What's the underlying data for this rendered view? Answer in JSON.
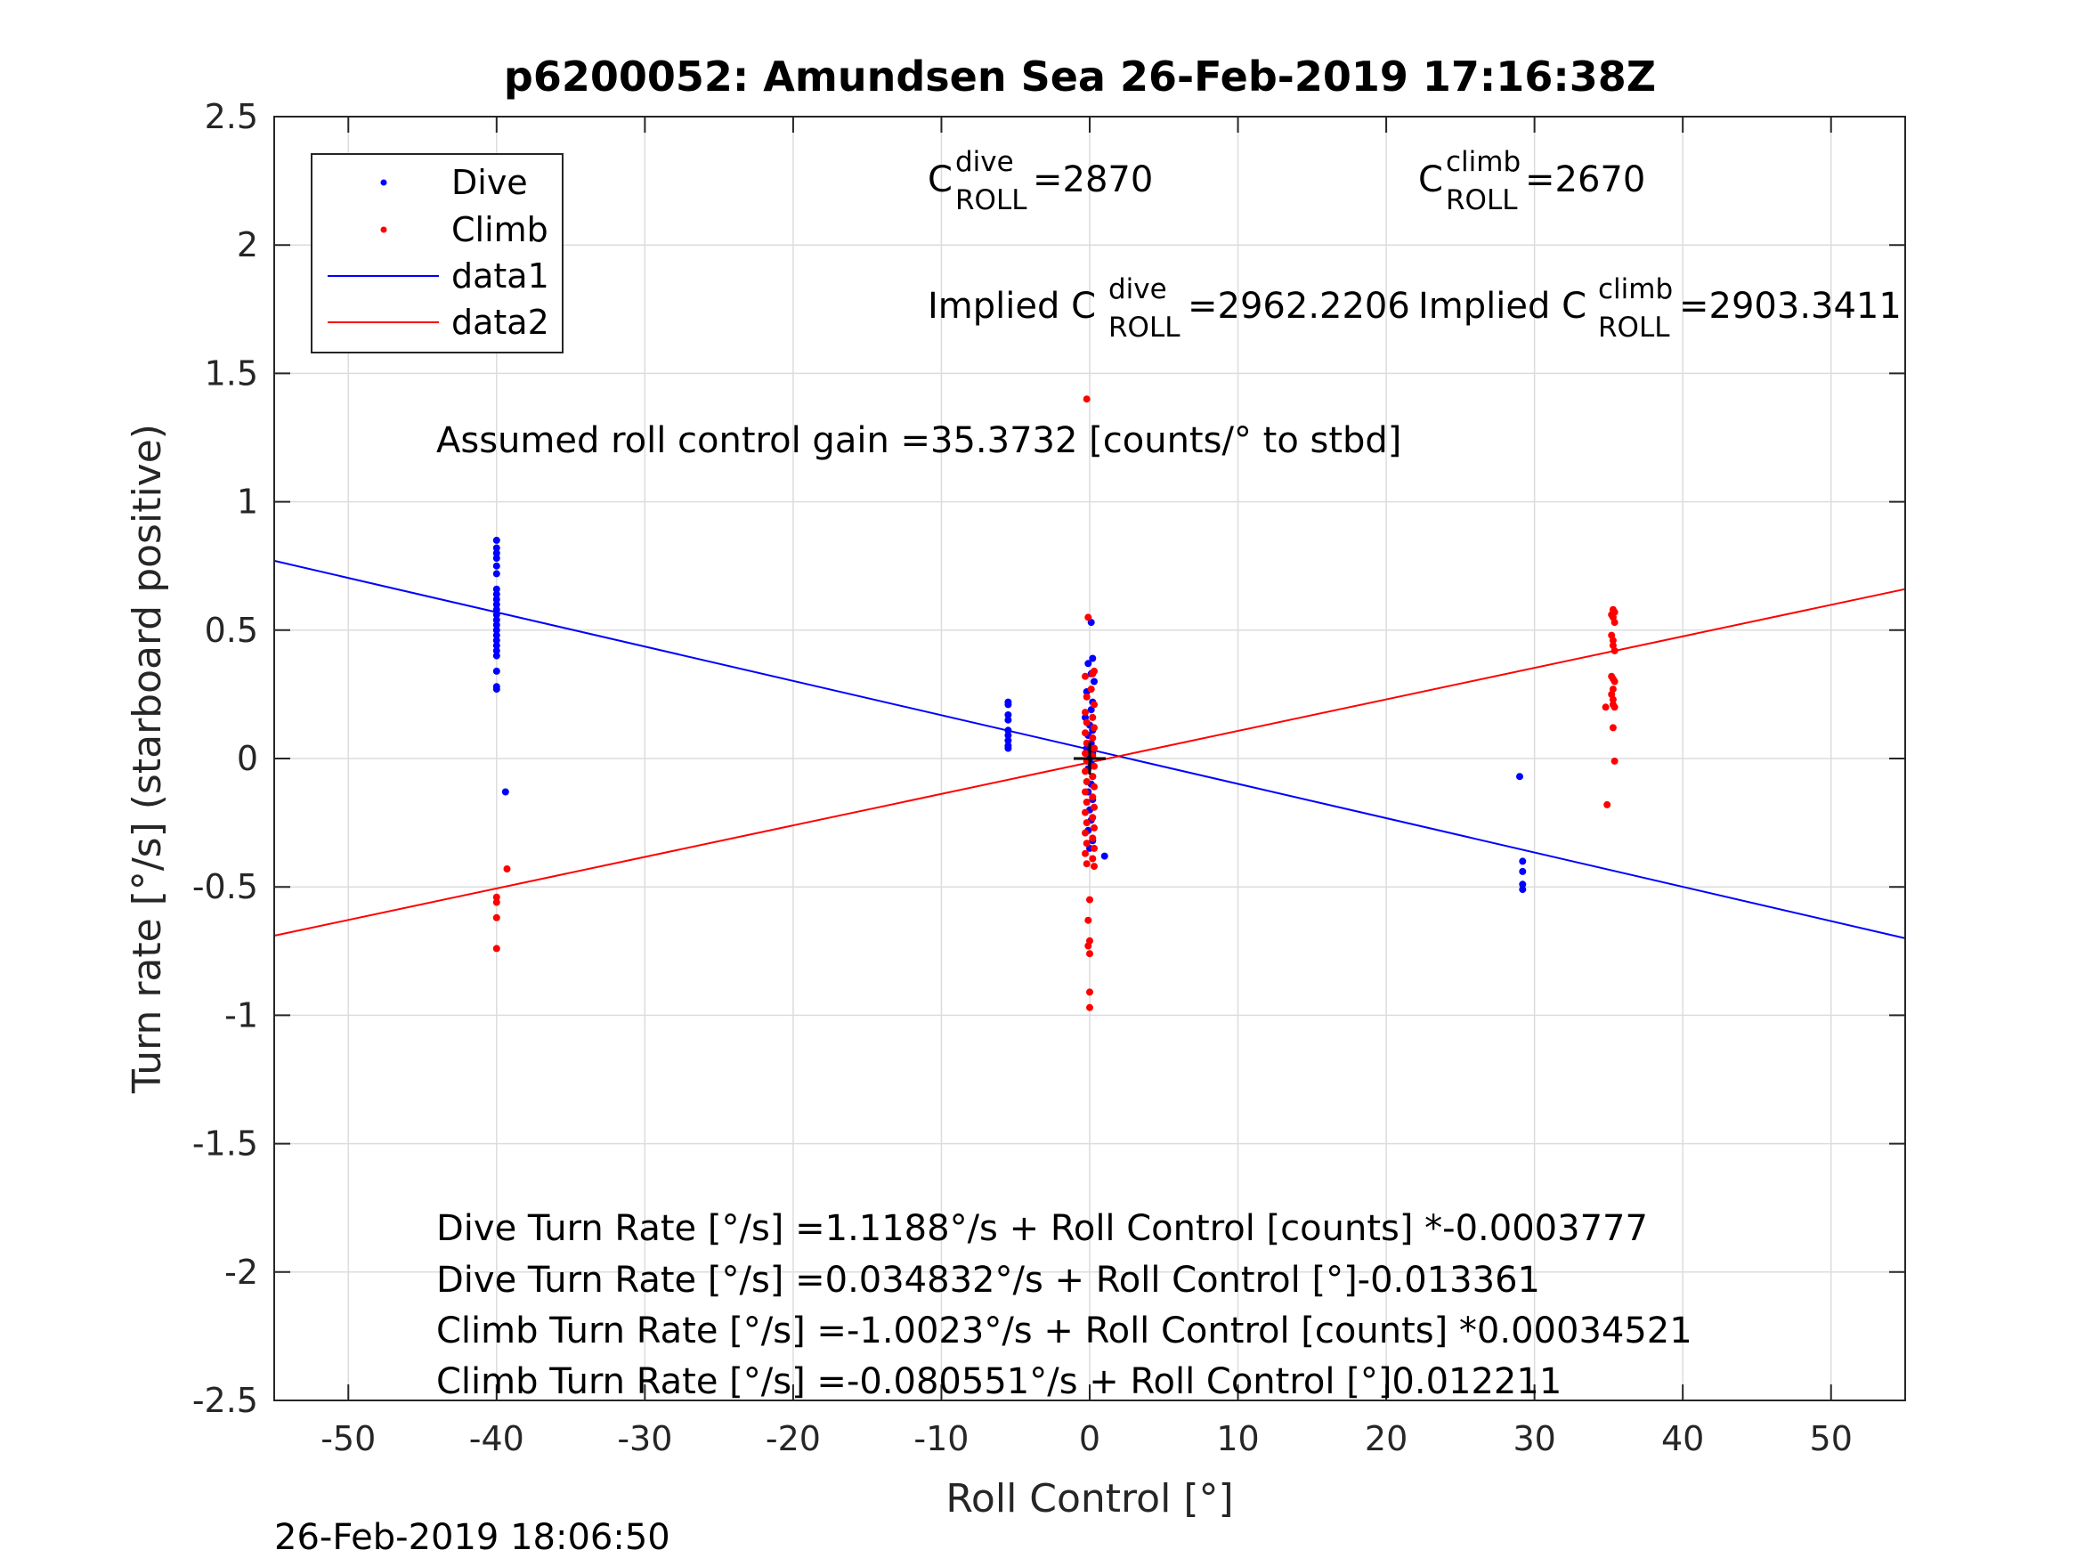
{
  "chart_data": {
    "type": "scatter",
    "title": "p6200052: Amundsen Sea 26-Feb-2019 17:16:38Z",
    "xlabel": "Roll Control [°]",
    "ylabel": "Turn rate [°/s] (starboard positive)",
    "xlim": [
      -55,
      55
    ],
    "ylim": [
      -2.5,
      2.5
    ],
    "grid": true,
    "legend_position": "top-left",
    "x_ticks": [
      "-50",
      "-40",
      "-30",
      "-20",
      "-10",
      "0",
      "10",
      "20",
      "30",
      "40",
      "50"
    ],
    "y_ticks": [
      "2.5",
      "2",
      "1.5",
      "1",
      "0.5",
      "0",
      "-0.5",
      "-1",
      "-1.5",
      "-2",
      "-2.5"
    ],
    "x_tick_values": [
      -50,
      -40,
      -30,
      -20,
      -10,
      0,
      10,
      20,
      30,
      40,
      50
    ],
    "y_tick_values": [
      2.5,
      2,
      1.5,
      1,
      0.5,
      0,
      -0.5,
      -1,
      -1.5,
      -2,
      -2.5
    ],
    "legend": [
      "Dive",
      "Climb",
      "data1",
      "data2"
    ],
    "series": [
      {
        "name": "Dive",
        "color": "#0000ff",
        "marker": "dot",
        "points": [
          [
            -40,
            0.85
          ],
          [
            -40,
            0.82
          ],
          [
            -40,
            0.8
          ],
          [
            -40,
            0.78
          ],
          [
            -40,
            0.75
          ],
          [
            -40,
            0.72
          ],
          [
            -40,
            0.66
          ],
          [
            -40,
            0.64
          ],
          [
            -40,
            0.62
          ],
          [
            -40,
            0.6
          ],
          [
            -40,
            0.58
          ],
          [
            -40,
            0.56
          ],
          [
            -40,
            0.54
          ],
          [
            -40,
            0.52
          ],
          [
            -40,
            0.5
          ],
          [
            -40,
            0.48
          ],
          [
            -40,
            0.46
          ],
          [
            -40,
            0.44
          ],
          [
            -40,
            0.42
          ],
          [
            -40,
            0.4
          ],
          [
            -40,
            0.34
          ],
          [
            -40,
            0.28
          ],
          [
            -40,
            0.27
          ],
          [
            -39.4,
            -0.13
          ],
          [
            -5.5,
            0.22
          ],
          [
            -5.5,
            0.21
          ],
          [
            -5.5,
            0.17
          ],
          [
            -5.5,
            0.15
          ],
          [
            -5.5,
            0.11
          ],
          [
            -5.5,
            0.09
          ],
          [
            -5.5,
            0.07
          ],
          [
            -5.5,
            0.05
          ],
          [
            -5.5,
            0.04
          ],
          [
            0.1,
            0.53
          ],
          [
            0.2,
            0.39
          ],
          [
            -0.1,
            0.37
          ],
          [
            0.1,
            0.33
          ],
          [
            0.3,
            0.3
          ],
          [
            -0.2,
            0.26
          ],
          [
            0.2,
            0.22
          ],
          [
            0.1,
            0.19
          ],
          [
            -0.3,
            0.16
          ],
          [
            0.0,
            0.13
          ],
          [
            0.2,
            0.11
          ],
          [
            -0.1,
            0.09
          ],
          [
            0.1,
            0.06
          ],
          [
            -0.2,
            0.04
          ],
          [
            0.2,
            0.02
          ],
          [
            0.0,
            0.0
          ],
          [
            0.1,
            -0.02
          ],
          [
            -0.1,
            -0.04
          ],
          [
            0.2,
            -0.07
          ],
          [
            0.1,
            -0.1
          ],
          [
            -0.1,
            -0.13
          ],
          [
            0.2,
            -0.16
          ],
          [
            0.0,
            -0.2
          ],
          [
            0.1,
            -0.24
          ],
          [
            -0.1,
            -0.28
          ],
          [
            0.2,
            -0.32
          ],
          [
            0.0,
            -0.35
          ],
          [
            1.0,
            -0.38
          ],
          [
            29,
            -0.07
          ],
          [
            29.2,
            -0.4
          ],
          [
            29.2,
            -0.44
          ],
          [
            29.2,
            -0.49
          ],
          [
            29.2,
            -0.51
          ]
        ]
      },
      {
        "name": "Climb",
        "color": "#ff0000",
        "marker": "dot",
        "points": [
          [
            -40,
            -0.54
          ],
          [
            -40,
            -0.56
          ],
          [
            -40,
            -0.62
          ],
          [
            -40,
            -0.74
          ],
          [
            -39.3,
            -0.43
          ],
          [
            -0.2,
            1.4
          ],
          [
            -0.1,
            0.55
          ],
          [
            0.2,
            0.33
          ],
          [
            0.3,
            0.34
          ],
          [
            -0.3,
            0.32
          ],
          [
            0.1,
            0.27
          ],
          [
            -0.2,
            0.24
          ],
          [
            0.3,
            0.21
          ],
          [
            -0.3,
            0.18
          ],
          [
            0.2,
            0.16
          ],
          [
            -0.2,
            0.14
          ],
          [
            0.3,
            0.12
          ],
          [
            -0.3,
            0.1
          ],
          [
            0.2,
            0.08
          ],
          [
            -0.2,
            0.06
          ],
          [
            0.3,
            0.04
          ],
          [
            -0.3,
            0.02
          ],
          [
            0.2,
            0.01
          ],
          [
            -0.2,
            -0.01
          ],
          [
            0.3,
            -0.03
          ],
          [
            -0.3,
            -0.05
          ],
          [
            0.2,
            -0.07
          ],
          [
            -0.2,
            -0.09
          ],
          [
            0.3,
            -0.11
          ],
          [
            -0.3,
            -0.13
          ],
          [
            0.2,
            -0.15
          ],
          [
            -0.2,
            -0.17
          ],
          [
            0.3,
            -0.19
          ],
          [
            -0.3,
            -0.21
          ],
          [
            0.2,
            -0.23
          ],
          [
            -0.2,
            -0.25
          ],
          [
            0.3,
            -0.27
          ],
          [
            -0.3,
            -0.29
          ],
          [
            0.2,
            -0.31
          ],
          [
            -0.2,
            -0.33
          ],
          [
            0.3,
            -0.35
          ],
          [
            -0.3,
            -0.37
          ],
          [
            0.2,
            -0.39
          ],
          [
            -0.2,
            -0.41
          ],
          [
            0.3,
            -0.42
          ],
          [
            0.0,
            -0.55
          ],
          [
            -0.1,
            -0.63
          ],
          [
            0.0,
            -0.71
          ],
          [
            -0.1,
            -0.73
          ],
          [
            0.0,
            -0.76
          ],
          [
            0.0,
            -0.91
          ],
          [
            0.0,
            -0.97
          ],
          [
            35.3,
            0.58
          ],
          [
            35.4,
            0.57
          ],
          [
            35.2,
            0.56
          ],
          [
            35.3,
            0.55
          ],
          [
            35.4,
            0.53
          ],
          [
            35.2,
            0.48
          ],
          [
            35.3,
            0.46
          ],
          [
            35.3,
            0.44
          ],
          [
            35.4,
            0.42
          ],
          [
            35.2,
            0.32
          ],
          [
            35.3,
            0.31
          ],
          [
            35.4,
            0.3
          ],
          [
            35.3,
            0.27
          ],
          [
            35.2,
            0.25
          ],
          [
            35.3,
            0.23
          ],
          [
            35.3,
            0.21
          ],
          [
            35.4,
            0.2
          ],
          [
            34.8,
            0.2
          ],
          [
            35.3,
            0.12
          ],
          [
            35.4,
            -0.01
          ],
          [
            34.9,
            -0.18
          ]
        ]
      },
      {
        "name": "data1",
        "color": "#0000ff",
        "marker": "line",
        "points": [
          [
            -55,
            0.77
          ],
          [
            55,
            -0.7
          ]
        ]
      },
      {
        "name": "data2",
        "color": "#ff0000",
        "marker": "line",
        "points": [
          [
            -55,
            -0.69
          ],
          [
            55,
            0.66
          ]
        ]
      }
    ],
    "center_marker": {
      "x": 0,
      "y": 0,
      "symbol": "+"
    },
    "annotations": {
      "c_dive_label": "C",
      "c_dive_sup": "dive",
      "c_dive_sub": "ROLL",
      "c_dive_value": " =2870",
      "c_climb_label": "C",
      "c_climb_sup": "climb",
      "c_climb_sub": "ROLL",
      "c_climb_value": " =2670",
      "implied_dive_prefix": "Implied C",
      "implied_dive_sup": "dive",
      "implied_dive_sub": "ROLL",
      "implied_dive_value": " =2962.2206",
      "implied_climb_prefix": "Implied C",
      "implied_climb_sup": "climb",
      "implied_climb_sub": "ROLL",
      "implied_climb_value": " =2903.3411",
      "gain": "Assumed roll control gain =35.3732 [counts/° to stbd]",
      "eq1": "Dive Turn Rate [°/s] =1.1188°/s + Roll Control [counts] *-0.0003777",
      "eq2": "Dive Turn Rate [°/s] =0.034832°/s + Roll Control [°]-0.013361",
      "eq3": "Climb Turn Rate [°/s] =-1.0023°/s + Roll Control [counts] *0.00034521",
      "eq4": "Climb Turn Rate [°/s] =-0.080551°/s + Roll Control [°]0.012211"
    },
    "timestamp": "26-Feb-2019 18:06:50"
  }
}
